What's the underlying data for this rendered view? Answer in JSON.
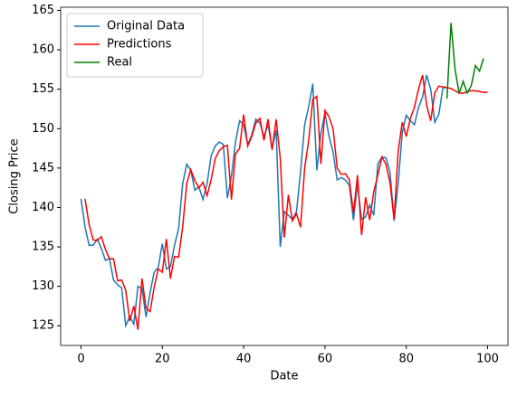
{
  "chart_data": {
    "type": "line",
    "xlabel": "Date",
    "ylabel": "Closing Price",
    "x": [
      0,
      1,
      2,
      3,
      4,
      5,
      6,
      7,
      8,
      9,
      10,
      11,
      12,
      13,
      14,
      15,
      16,
      17,
      18,
      19,
      20,
      21,
      22,
      23,
      24,
      25,
      26,
      27,
      28,
      29,
      30,
      31,
      32,
      33,
      34,
      35,
      36,
      37,
      38,
      39,
      40,
      41,
      42,
      43,
      44,
      45,
      46,
      47,
      48,
      49,
      50,
      51,
      52,
      53,
      54,
      55,
      56,
      57,
      58,
      59,
      60,
      61,
      62,
      63,
      64,
      65,
      66,
      67,
      68,
      69,
      70,
      71,
      72,
      73,
      74,
      75,
      76,
      77,
      78,
      79,
      80,
      81,
      82,
      83,
      84,
      85,
      86,
      87,
      88,
      89,
      90,
      91,
      92,
      93,
      94,
      95,
      96,
      97,
      98,
      99,
      100
    ],
    "series": [
      {
        "name": "Original Data",
        "color": "#1f77b4",
        "values": [
          141.1,
          137.5,
          135.2,
          135.2,
          136,
          134.8,
          133.3,
          133.5,
          130.8,
          130.2,
          129.8,
          125,
          126.2,
          125.2,
          130,
          129.7,
          126.1,
          129.2,
          131.8,
          132.4,
          135.4,
          132.2,
          132.5,
          135.2,
          137.3,
          143,
          145.5,
          144.7,
          142.2,
          142.6,
          141,
          143,
          146.5,
          147.8,
          148.3,
          148,
          141.2,
          144,
          148.3,
          151,
          150.5,
          148,
          149.2,
          151.2,
          150.7,
          149,
          150.5,
          147.5,
          149.8,
          135,
          139.5,
          139,
          138.5,
          139.5,
          144.5,
          150.5,
          152.8,
          155.7,
          144.7,
          149.4,
          152,
          149,
          147,
          143.5,
          143.8,
          143.5,
          142.8,
          138.4,
          143,
          138.5,
          138.8,
          140.3,
          139,
          145.5,
          146.4,
          146.3,
          144.5,
          138.3,
          143,
          149.5,
          151.7,
          151,
          150.5,
          152.7,
          154,
          156.8,
          155,
          150.8,
          151.8,
          155.2,
          155.2,
          null,
          null,
          null,
          null,
          null,
          null,
          null,
          null,
          null,
          null
        ]
      },
      {
        "name": "Predictions",
        "color": "#ff0000",
        "values": [
          null,
          141.1,
          137.8,
          135.9,
          135.8,
          136.3,
          134.7,
          133.5,
          133.5,
          130.7,
          130.8,
          129.5,
          125.6,
          127.5,
          124.5,
          131,
          127.2,
          126.8,
          129.9,
          132.2,
          131.8,
          136,
          131,
          133.8,
          133.7,
          137.5,
          143,
          144.8,
          143.4,
          142.5,
          143.2,
          141.5,
          143.5,
          146.2,
          147.2,
          147.7,
          147.9,
          141,
          146.8,
          147.5,
          151.8,
          147.8,
          149,
          150.7,
          151.3,
          148.5,
          151.2,
          147.3,
          151.2,
          146.3,
          136.2,
          141.6,
          138.3,
          139.2,
          137.5,
          145,
          148.5,
          153.7,
          154.1,
          145.5,
          152.3,
          151.5,
          150,
          145,
          144.2,
          144.3,
          143.5,
          139.3,
          144.1,
          136.5,
          141.3,
          138.4,
          142,
          144.1,
          146.4,
          145.5,
          143.1,
          138.5,
          147.1,
          150.8,
          149,
          151.3,
          152.7,
          155,
          156.8,
          153,
          151,
          154.5,
          155.4,
          155.3,
          155.2,
          155.1,
          154.8,
          154.5,
          154.5,
          154.7,
          154.8,
          154.8,
          154.7,
          154.6,
          154.6
        ]
      },
      {
        "name": "Real",
        "color": "#008000",
        "values": [
          null,
          null,
          null,
          null,
          null,
          null,
          null,
          null,
          null,
          null,
          null,
          null,
          null,
          null,
          null,
          null,
          null,
          null,
          null,
          null,
          null,
          null,
          null,
          null,
          null,
          null,
          null,
          null,
          null,
          null,
          null,
          null,
          null,
          null,
          null,
          null,
          null,
          null,
          null,
          null,
          null,
          null,
          null,
          null,
          null,
          null,
          null,
          null,
          null,
          null,
          null,
          null,
          null,
          null,
          null,
          null,
          null,
          null,
          null,
          null,
          null,
          null,
          null,
          null,
          null,
          null,
          null,
          null,
          null,
          null,
          null,
          null,
          null,
          null,
          null,
          null,
          null,
          null,
          null,
          null,
          null,
          null,
          null,
          null,
          null,
          null,
          null,
          null,
          null,
          null,
          153.8,
          163.4,
          157.5,
          154.5,
          156,
          154.5,
          155.5,
          158,
          157.3,
          158.9,
          null
        ]
      }
    ],
    "xlim": [
      -5,
      105
    ],
    "ylim": [
      122.5,
      165.4
    ],
    "xticks": [
      0,
      20,
      40,
      60,
      80,
      100
    ],
    "yticks": [
      125,
      130,
      135,
      140,
      145,
      150,
      155,
      160,
      165
    ],
    "legend": "upper left"
  }
}
